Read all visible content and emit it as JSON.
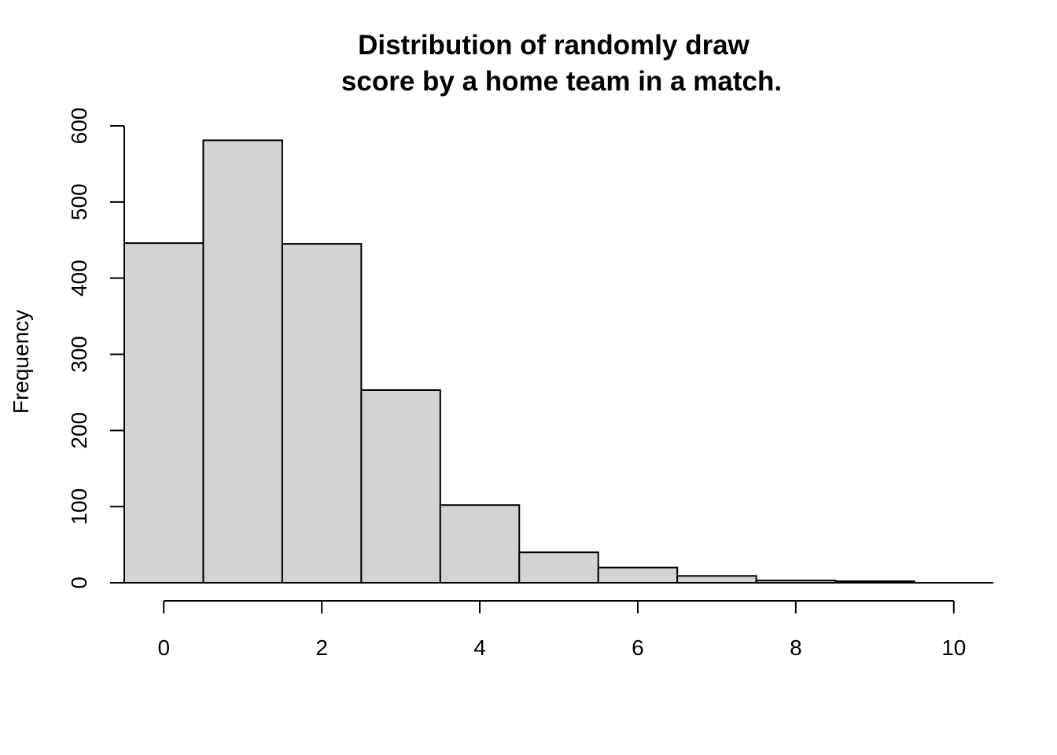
{
  "chart_data": {
    "type": "bar",
    "title_lines": [
      "Distribution of randomly draw",
      "score by a home team in a match."
    ],
    "xlabel": "",
    "ylabel": "Frequency",
    "bin_width": 1,
    "x": [
      0,
      1,
      2,
      3,
      4,
      5,
      6,
      7,
      8,
      9,
      10
    ],
    "values": [
      446,
      581,
      445,
      253,
      102,
      40,
      20,
      9,
      3,
      2,
      0
    ],
    "xlim": [
      -0.5,
      10.5
    ],
    "ylim": [
      0,
      600
    ],
    "x_ticks": [
      0,
      2,
      4,
      6,
      8,
      10
    ],
    "y_ticks": [
      0,
      100,
      200,
      300,
      400,
      500,
      600
    ],
    "grid": false,
    "bar_color": "#d3d3d3",
    "border_color": "#000000"
  }
}
